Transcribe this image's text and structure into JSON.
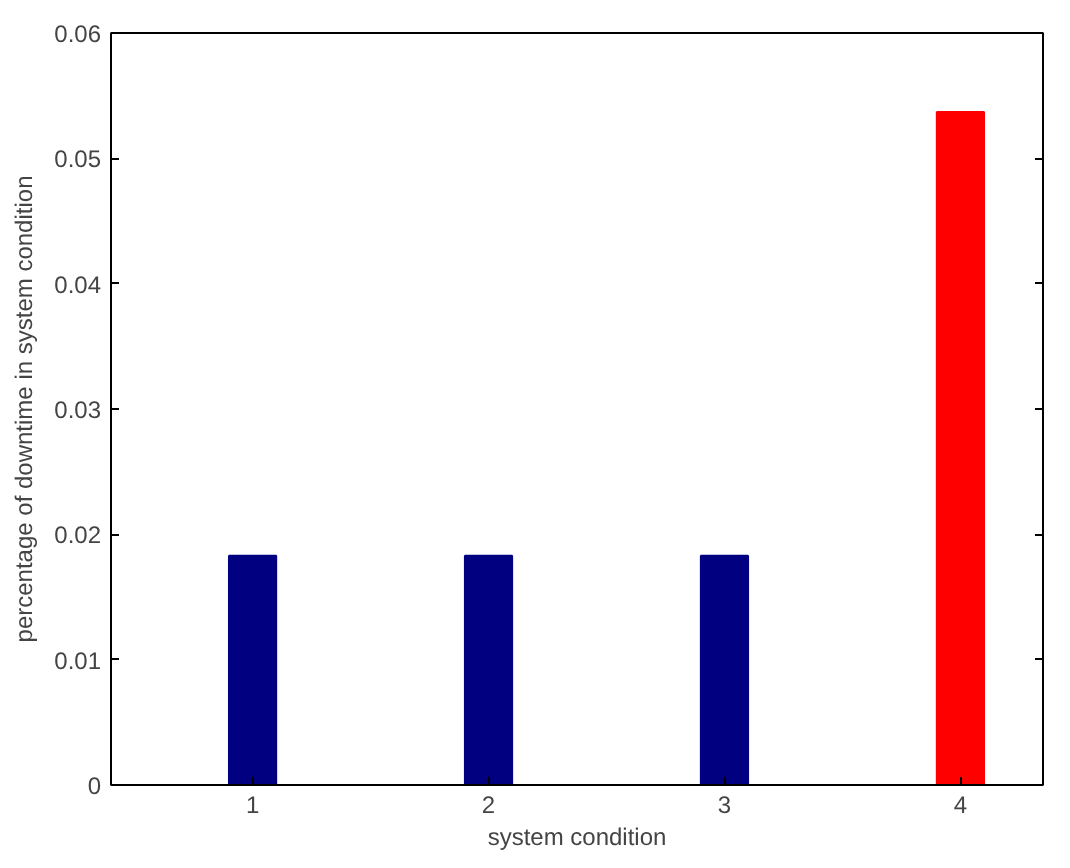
{
  "chart_data": {
    "type": "bar",
    "xlabel": "system condition",
    "ylabel": "percentage of downtime in system condition",
    "x": [
      1,
      2,
      3,
      4
    ],
    "values": [
      0.0183,
      0.0183,
      0.0183,
      0.0537
    ],
    "colors": [
      "#000080",
      "#000080",
      "#000080",
      "#ff0000"
    ],
    "xlim": [
      0.4,
      4.35
    ],
    "xticks": [
      1,
      2,
      3,
      4
    ],
    "ylim": [
      0,
      0.06
    ],
    "yticks": [
      0,
      0.01,
      0.02,
      0.03,
      0.04,
      0.05,
      0.06
    ],
    "grid": false
  }
}
